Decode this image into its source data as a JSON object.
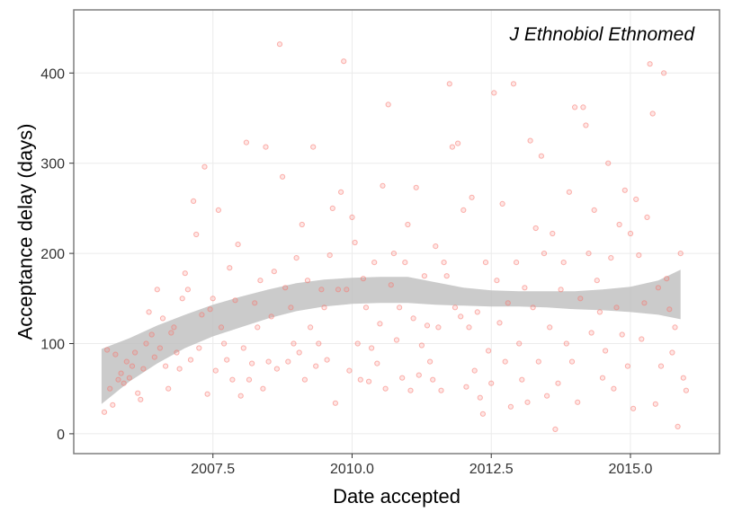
{
  "chart_data": {
    "type": "scatter",
    "title": "",
    "annotation": "J Ethnobiol Ethnomed",
    "xlabel": "Date accepted",
    "ylabel": "Acceptance delay (days)",
    "xlim": [
      2005.0,
      2016.6
    ],
    "ylim": [
      -22,
      470
    ],
    "x_ticks": [
      2007.5,
      2010.0,
      2012.5,
      2015.0
    ],
    "x_tick_labels": [
      "2007.5",
      "2010.0",
      "2012.5",
      "2015.0"
    ],
    "y_ticks": [
      0,
      100,
      200,
      300,
      400
    ],
    "y_tick_labels": [
      "0",
      "100",
      "200",
      "300",
      "400"
    ],
    "grid": true,
    "colors": {
      "points": "#f8766d",
      "ribbon": "#bdbdbd",
      "panel_border": "#7f7f7f",
      "grid": "#ebebeb"
    },
    "smooth": {
      "x": [
        2005.5,
        2006.0,
        2006.5,
        2007.0,
        2007.5,
        2008.0,
        2008.5,
        2009.0,
        2009.5,
        2010.0,
        2010.5,
        2011.0,
        2011.5,
        2012.0,
        2012.5,
        2013.0,
        2013.5,
        2014.0,
        2014.5,
        2015.0,
        2015.5,
        2015.9
      ],
      "lower": [
        33,
        58,
        78,
        95,
        108,
        118,
        128,
        136,
        141,
        144,
        145,
        145,
        143,
        142,
        141,
        141,
        140,
        138,
        137,
        135,
        132,
        127
      ],
      "upper": [
        94,
        106,
        120,
        132,
        143,
        152,
        160,
        167,
        171,
        173,
        174,
        174,
        168,
        162,
        159,
        158,
        158,
        158,
        160,
        163,
        170,
        182
      ]
    },
    "series": [
      {
        "points": [
          [
            2005.55,
            24
          ],
          [
            2005.6,
            93
          ],
          [
            2005.65,
            50
          ],
          [
            2005.7,
            32
          ],
          [
            2005.75,
            88
          ],
          [
            2005.8,
            60
          ],
          [
            2005.85,
            67
          ],
          [
            2005.9,
            56
          ],
          [
            2005.95,
            80
          ],
          [
            2006.0,
            62
          ],
          [
            2006.05,
            75
          ],
          [
            2006.1,
            90
          ],
          [
            2006.15,
            45
          ],
          [
            2006.2,
            38
          ],
          [
            2006.25,
            72
          ],
          [
            2006.3,
            100
          ],
          [
            2006.35,
            135
          ],
          [
            2006.4,
            110
          ],
          [
            2006.45,
            85
          ],
          [
            2006.5,
            160
          ],
          [
            2006.55,
            95
          ],
          [
            2006.6,
            128
          ],
          [
            2006.65,
            75
          ],
          [
            2006.7,
            50
          ],
          [
            2006.75,
            112
          ],
          [
            2006.8,
            118
          ],
          [
            2006.85,
            90
          ],
          [
            2006.9,
            72
          ],
          [
            2006.95,
            150
          ],
          [
            2007.0,
            178
          ],
          [
            2007.05,
            160
          ],
          [
            2007.1,
            82
          ],
          [
            2007.15,
            258
          ],
          [
            2007.2,
            221
          ],
          [
            2007.25,
            95
          ],
          [
            2007.3,
            132
          ],
          [
            2007.35,
            296
          ],
          [
            2007.4,
            44
          ],
          [
            2007.45,
            138
          ],
          [
            2007.5,
            150
          ],
          [
            2007.55,
            70
          ],
          [
            2007.6,
            248
          ],
          [
            2007.65,
            118
          ],
          [
            2007.7,
            100
          ],
          [
            2007.75,
            82
          ],
          [
            2007.8,
            184
          ],
          [
            2007.85,
            60
          ],
          [
            2007.9,
            148
          ],
          [
            2007.95,
            210
          ],
          [
            2008.0,
            42
          ],
          [
            2008.05,
            95
          ],
          [
            2008.1,
            323
          ],
          [
            2008.15,
            60
          ],
          [
            2008.2,
            78
          ],
          [
            2008.25,
            145
          ],
          [
            2008.3,
            118
          ],
          [
            2008.35,
            170
          ],
          [
            2008.4,
            50
          ],
          [
            2008.45,
            318
          ],
          [
            2008.5,
            80
          ],
          [
            2008.55,
            130
          ],
          [
            2008.6,
            180
          ],
          [
            2008.65,
            72
          ],
          [
            2008.7,
            432
          ],
          [
            2008.75,
            285
          ],
          [
            2008.8,
            162
          ],
          [
            2008.85,
            80
          ],
          [
            2008.9,
            140
          ],
          [
            2008.95,
            100
          ],
          [
            2009.0,
            195
          ],
          [
            2009.05,
            90
          ],
          [
            2009.1,
            232
          ],
          [
            2009.15,
            60
          ],
          [
            2009.2,
            170
          ],
          [
            2009.25,
            118
          ],
          [
            2009.3,
            318
          ],
          [
            2009.35,
            75
          ],
          [
            2009.4,
            100
          ],
          [
            2009.45,
            160
          ],
          [
            2009.5,
            140
          ],
          [
            2009.55,
            82
          ],
          [
            2009.6,
            198
          ],
          [
            2009.65,
            250
          ],
          [
            2009.7,
            34
          ],
          [
            2009.75,
            160
          ],
          [
            2009.8,
            268
          ],
          [
            2009.85,
            413
          ],
          [
            2009.9,
            160
          ],
          [
            2009.95,
            70
          ],
          [
            2010.0,
            240
          ],
          [
            2010.05,
            212
          ],
          [
            2010.1,
            100
          ],
          [
            2010.15,
            60
          ],
          [
            2010.2,
            172
          ],
          [
            2010.25,
            140
          ],
          [
            2010.3,
            58
          ],
          [
            2010.35,
            95
          ],
          [
            2010.4,
            190
          ],
          [
            2010.45,
            78
          ],
          [
            2010.5,
            122
          ],
          [
            2010.55,
            275
          ],
          [
            2010.6,
            50
          ],
          [
            2010.65,
            365
          ],
          [
            2010.7,
            165
          ],
          [
            2010.75,
            200
          ],
          [
            2010.8,
            104
          ],
          [
            2010.85,
            140
          ],
          [
            2010.9,
            62
          ],
          [
            2010.95,
            190
          ],
          [
            2011.0,
            232
          ],
          [
            2011.05,
            48
          ],
          [
            2011.1,
            128
          ],
          [
            2011.15,
            273
          ],
          [
            2011.2,
            65
          ],
          [
            2011.25,
            98
          ],
          [
            2011.3,
            175
          ],
          [
            2011.35,
            120
          ],
          [
            2011.4,
            80
          ],
          [
            2011.45,
            60
          ],
          [
            2011.5,
            208
          ],
          [
            2011.55,
            118
          ],
          [
            2011.6,
            48
          ],
          [
            2011.65,
            190
          ],
          [
            2011.7,
            175
          ],
          [
            2011.75,
            388
          ],
          [
            2011.8,
            318
          ],
          [
            2011.85,
            140
          ],
          [
            2011.9,
            322
          ],
          [
            2011.95,
            130
          ],
          [
            2012.0,
            248
          ],
          [
            2012.05,
            52
          ],
          [
            2012.1,
            118
          ],
          [
            2012.15,
            262
          ],
          [
            2012.2,
            70
          ],
          [
            2012.25,
            135
          ],
          [
            2012.3,
            40
          ],
          [
            2012.35,
            22
          ],
          [
            2012.4,
            190
          ],
          [
            2012.45,
            92
          ],
          [
            2012.5,
            56
          ],
          [
            2012.55,
            378
          ],
          [
            2012.6,
            170
          ],
          [
            2012.65,
            123
          ],
          [
            2012.7,
            255
          ],
          [
            2012.75,
            80
          ],
          [
            2012.8,
            145
          ],
          [
            2012.85,
            30
          ],
          [
            2012.9,
            388
          ],
          [
            2012.95,
            190
          ],
          [
            2013.0,
            100
          ],
          [
            2013.05,
            60
          ],
          [
            2013.1,
            162
          ],
          [
            2013.15,
            35
          ],
          [
            2013.2,
            325
          ],
          [
            2013.25,
            140
          ],
          [
            2013.3,
            228
          ],
          [
            2013.35,
            80
          ],
          [
            2013.4,
            308
          ],
          [
            2013.45,
            200
          ],
          [
            2013.5,
            42
          ],
          [
            2013.55,
            118
          ],
          [
            2013.6,
            222
          ],
          [
            2013.65,
            5
          ],
          [
            2013.7,
            56
          ],
          [
            2013.75,
            160
          ],
          [
            2013.8,
            190
          ],
          [
            2013.85,
            100
          ],
          [
            2013.9,
            268
          ],
          [
            2013.95,
            80
          ],
          [
            2014.0,
            362
          ],
          [
            2014.05,
            35
          ],
          [
            2014.1,
            150
          ],
          [
            2014.15,
            362
          ],
          [
            2014.2,
            342
          ],
          [
            2014.25,
            200
          ],
          [
            2014.3,
            112
          ],
          [
            2014.35,
            248
          ],
          [
            2014.4,
            170
          ],
          [
            2014.45,
            135
          ],
          [
            2014.5,
            62
          ],
          [
            2014.55,
            92
          ],
          [
            2014.6,
            300
          ],
          [
            2014.65,
            195
          ],
          [
            2014.7,
            50
          ],
          [
            2014.75,
            140
          ],
          [
            2014.8,
            232
          ],
          [
            2014.85,
            110
          ],
          [
            2014.9,
            270
          ],
          [
            2014.95,
            75
          ],
          [
            2015.0,
            222
          ],
          [
            2015.05,
            28
          ],
          [
            2015.1,
            260
          ],
          [
            2015.15,
            198
          ],
          [
            2015.2,
            105
          ],
          [
            2015.25,
            145
          ],
          [
            2015.3,
            240
          ],
          [
            2015.35,
            410
          ],
          [
            2015.4,
            355
          ],
          [
            2015.45,
            33
          ],
          [
            2015.5,
            162
          ],
          [
            2015.55,
            75
          ],
          [
            2015.6,
            400
          ],
          [
            2015.65,
            172
          ],
          [
            2015.7,
            138
          ],
          [
            2015.75,
            90
          ],
          [
            2015.8,
            118
          ],
          [
            2015.85,
            8
          ],
          [
            2015.9,
            200
          ],
          [
            2015.95,
            62
          ],
          [
            2016.0,
            48
          ]
        ]
      }
    ]
  }
}
